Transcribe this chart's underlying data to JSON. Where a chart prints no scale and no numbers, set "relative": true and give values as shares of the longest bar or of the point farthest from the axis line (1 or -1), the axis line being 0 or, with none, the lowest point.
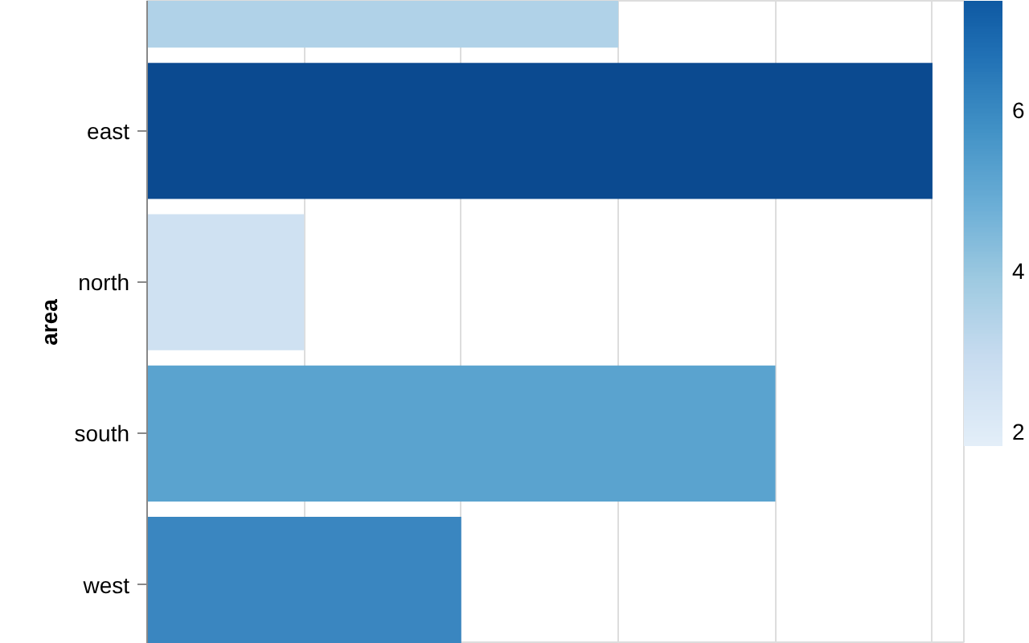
{
  "chart_data": {
    "type": "bar",
    "orientation": "horizontal",
    "relative": true,
    "ylabel": "area",
    "categories": [
      null,
      "east",
      "north",
      "south",
      "west"
    ],
    "values": [
      0.6,
      1,
      0.2,
      0.8,
      0.4
    ],
    "colors": [
      "#b0d2e8",
      "#0b4a90",
      "#cfe1f2",
      "#5aa3cf",
      "#3a86c0"
    ],
    "clim": [
      1.82,
      7.36
    ],
    "cticks": [
      2,
      4,
      6
    ],
    "grid": "x"
  }
}
